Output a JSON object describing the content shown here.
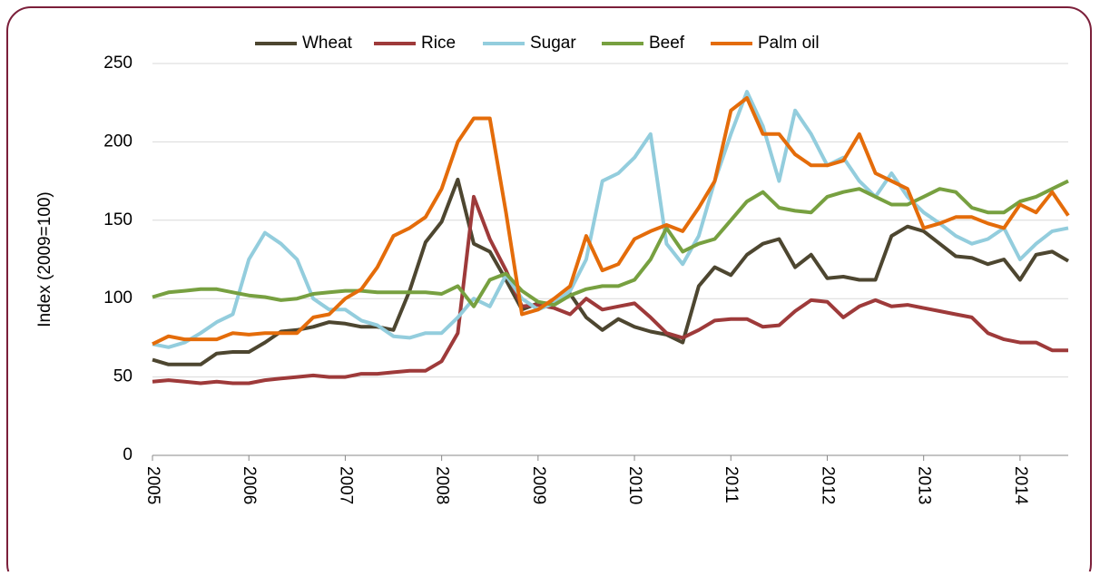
{
  "chart_data": {
    "type": "line",
    "y_label": "Index (2009=100)",
    "x": [
      2005,
      2005.167,
      2005.333,
      2005.5,
      2005.667,
      2005.833,
      2006,
      2006.167,
      2006.333,
      2006.5,
      2006.667,
      2006.833,
      2007,
      2007.167,
      2007.333,
      2007.5,
      2007.667,
      2007.833,
      2008,
      2008.167,
      2008.333,
      2008.5,
      2008.667,
      2008.833,
      2009,
      2009.167,
      2009.333,
      2009.5,
      2009.667,
      2009.833,
      2010,
      2010.167,
      2010.333,
      2010.5,
      2010.667,
      2010.833,
      2011,
      2011.167,
      2011.333,
      2011.5,
      2011.667,
      2011.833,
      2012,
      2012.167,
      2012.333,
      2012.5,
      2012.667,
      2012.833,
      2013,
      2013.167,
      2013.333,
      2013.5,
      2013.667,
      2013.833,
      2014,
      2014.167,
      2014.333,
      2014.5
    ],
    "series": [
      {
        "name": "Wheat",
        "color": "#4d4630",
        "values": [
          61,
          58,
          58,
          58,
          65,
          66,
          66,
          72,
          79,
          80,
          82,
          85,
          84,
          82,
          82,
          80,
          105,
          136,
          149,
          176,
          135,
          130,
          112,
          93,
          97,
          97,
          103,
          88,
          80,
          87,
          82,
          79,
          77,
          72,
          108,
          120,
          115,
          128,
          135,
          138,
          120,
          128,
          113,
          114,
          112,
          112,
          140,
          146,
          143,
          135,
          127,
          126,
          122,
          125,
          112,
          128,
          130,
          124
        ]
      },
      {
        "name": "Rice",
        "color": "#9e3a3a",
        "values": [
          47,
          48,
          47,
          46,
          47,
          46,
          46,
          48,
          49,
          50,
          51,
          50,
          50,
          52,
          52,
          53,
          54,
          54,
          60,
          78,
          165,
          138,
          118,
          95,
          96,
          94,
          90,
          100,
          93,
          95,
          97,
          88,
          78,
          75,
          80,
          86,
          87,
          87,
          82,
          83,
          92,
          99,
          98,
          88,
          95,
          99,
          95,
          96,
          94,
          92,
          90,
          88,
          78,
          74,
          72,
          72,
          67,
          67
        ]
      },
      {
        "name": "Sugar",
        "color": "#93cddd",
        "values": [
          71,
          69,
          72,
          78,
          85,
          90,
          125,
          142,
          135,
          125,
          100,
          93,
          93,
          86,
          83,
          76,
          75,
          78,
          78,
          88,
          100,
          95,
          115,
          100,
          93,
          97,
          105,
          125,
          175,
          180,
          190,
          205,
          135,
          122,
          140,
          175,
          205,
          232,
          210,
          175,
          220,
          205,
          185,
          190,
          175,
          165,
          180,
          165,
          155,
          148,
          140,
          135,
          138,
          145,
          125,
          135,
          143,
          145
        ]
      },
      {
        "name": "Beef",
        "color": "#77a040",
        "values": [
          101,
          104,
          105,
          106,
          106,
          104,
          102,
          101,
          99,
          100,
          103,
          104,
          105,
          105,
          104,
          104,
          104,
          104,
          103,
          108,
          95,
          112,
          116,
          105,
          98,
          96,
          102,
          106,
          108,
          108,
          112,
          125,
          145,
          130,
          135,
          138,
          150,
          162,
          168,
          158,
          156,
          155,
          165,
          168,
          170,
          165,
          160,
          160,
          165,
          170,
          168,
          158,
          155,
          155,
          162,
          165,
          170,
          175
        ]
      },
      {
        "name": "Palm oil",
        "color": "#e46c0a",
        "values": [
          71,
          76,
          74,
          74,
          74,
          78,
          77,
          78,
          78,
          78,
          88,
          90,
          100,
          106,
          120,
          140,
          145,
          152,
          170,
          200,
          215,
          215,
          155,
          90,
          93,
          100,
          108,
          140,
          118,
          122,
          138,
          143,
          147,
          143,
          158,
          175,
          220,
          228,
          205,
          205,
          192,
          185,
          185,
          188,
          205,
          180,
          175,
          170,
          145,
          148,
          152,
          152,
          148,
          145,
          160,
          155,
          168,
          153
        ]
      }
    ],
    "xlim": [
      2005,
      2014.5
    ],
    "xticks": [
      2005,
      2006,
      2007,
      2008,
      2009,
      2010,
      2011,
      2012,
      2013,
      2014
    ],
    "ylim": [
      0,
      250
    ],
    "yticks": [
      0,
      50,
      100,
      150,
      200,
      250
    ],
    "grid": true,
    "legend": "top"
  }
}
